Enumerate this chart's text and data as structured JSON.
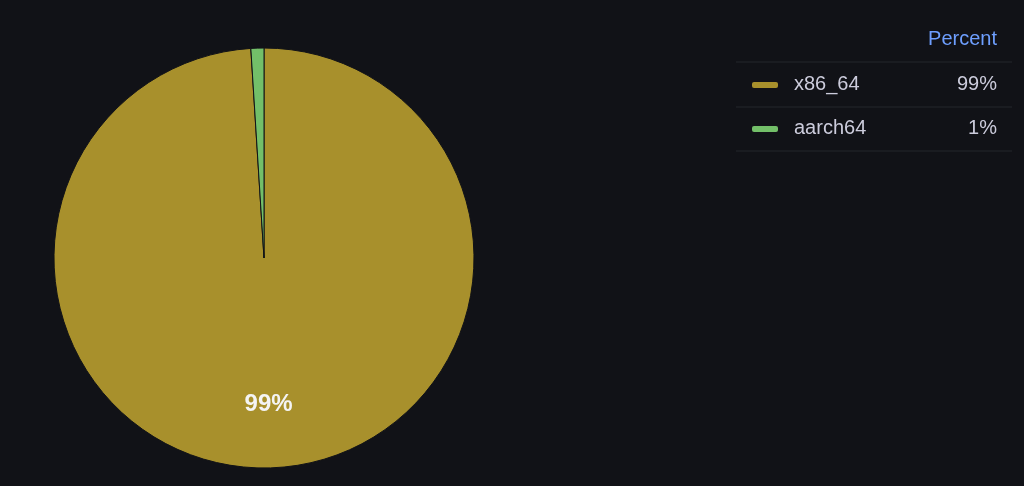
{
  "chart_data": {
    "type": "pie",
    "categories": [
      "x86_64",
      "aarch64"
    ],
    "values": [
      99,
      1
    ],
    "colors": [
      "#a8902c",
      "#73bf69"
    ],
    "value_labels": [
      "99%",
      "1%"
    ],
    "legend_title": "Percent",
    "legend": "right"
  }
}
